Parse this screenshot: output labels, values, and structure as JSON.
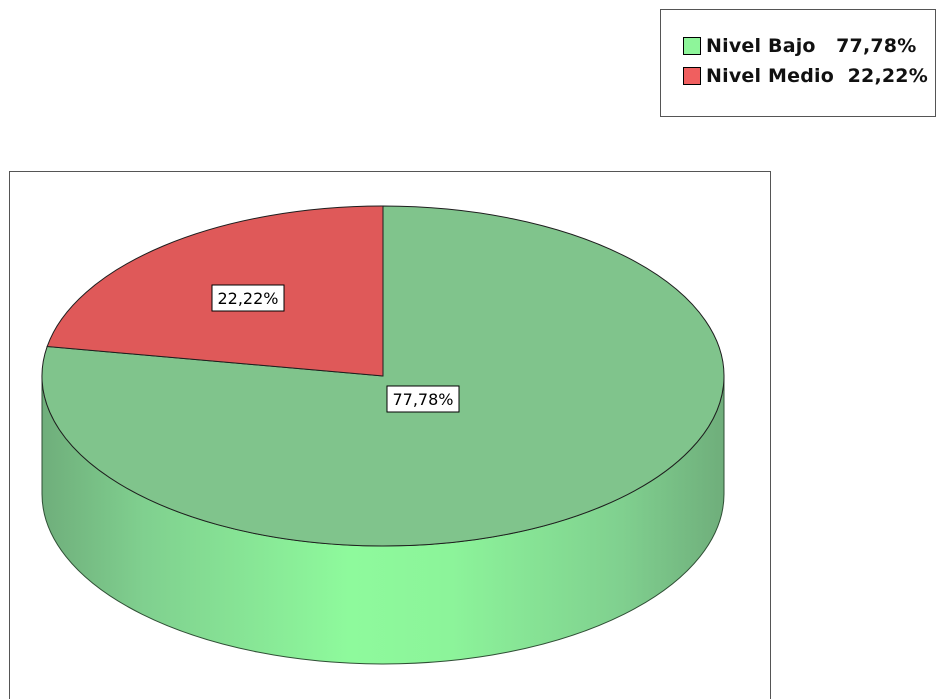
{
  "chart_data": {
    "type": "pie",
    "style": "3d",
    "slices": [
      {
        "label": "Nivel Bajo",
        "value": 77.78,
        "percent_label": "77,78%",
        "legend_text": "Nivel Bajo   77,78%",
        "color": "#80C48C",
        "legend_color": "#8EF59A"
      },
      {
        "label": "Nivel Medio",
        "value": 22.22,
        "percent_label": "22,22%",
        "legend_text": "Nivel Medio  22,22%",
        "color": "#DF5959",
        "legend_color": "#F05F5F"
      }
    ],
    "legend_position": "top-right"
  }
}
